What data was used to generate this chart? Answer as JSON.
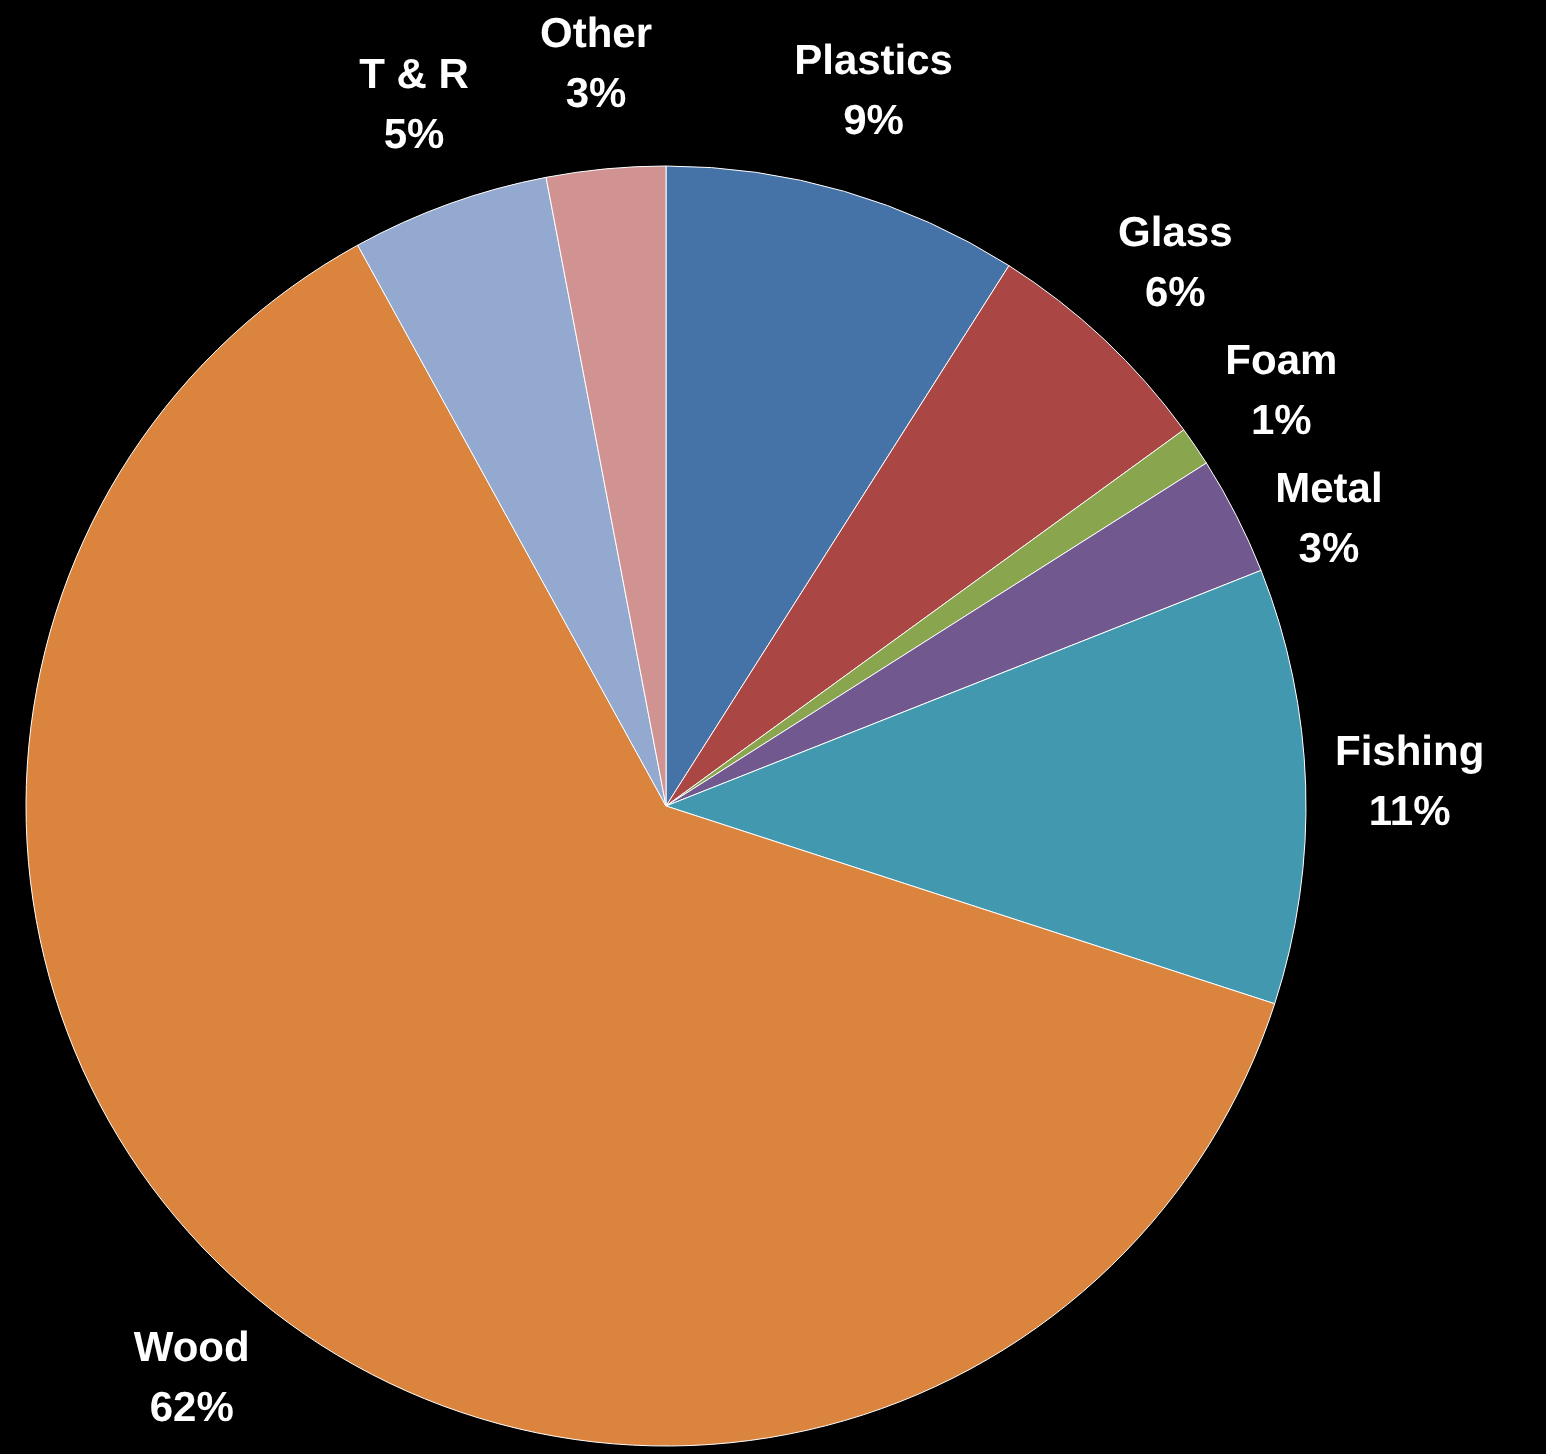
{
  "chart_data": {
    "type": "pie",
    "categories": [
      "Plastics",
      "Glass",
      "Foam",
      "Metal",
      "Fishing",
      "Wood",
      "T & R",
      "Other"
    ],
    "values": [
      9,
      6,
      1,
      3,
      11,
      62,
      5,
      3
    ],
    "value_labels": [
      "9%",
      "6%",
      "1%",
      "3%",
      "11%",
      "62%",
      "5%",
      "3%"
    ],
    "colors": [
      "#4572a7",
      "#aa4643",
      "#89a54e",
      "#71588f",
      "#4198af",
      "#db843d",
      "#93a9cf",
      "#d19392"
    ]
  }
}
